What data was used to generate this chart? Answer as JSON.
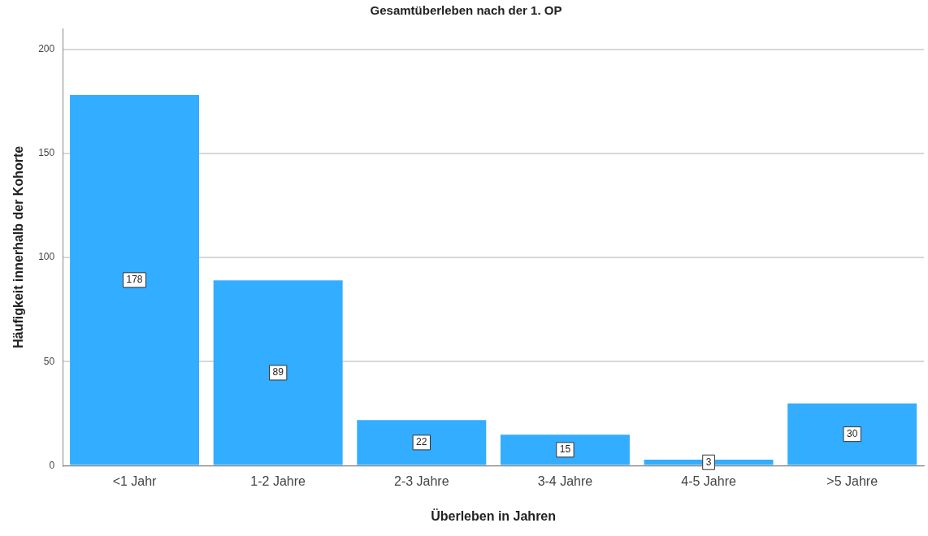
{
  "chart_data": {
    "type": "bar",
    "title": "Gesamtüberleben nach der 1. OP",
    "xlabel": "Überleben in Jahren",
    "ylabel": "Häufigkeit innerhalb der Kohorte",
    "categories": [
      "<1 Jahr",
      "1-2 Jahre",
      "2-3 Jahre",
      "3-4 Jahre",
      "4-5 Jahre",
      ">5 Jahre"
    ],
    "values": [
      178,
      89,
      22,
      15,
      3,
      30
    ],
    "color": "#33adff",
    "ylim": [
      0,
      210
    ],
    "yticks": [
      0,
      50,
      100,
      150,
      200
    ],
    "grid": "y",
    "data_labels": true
  }
}
